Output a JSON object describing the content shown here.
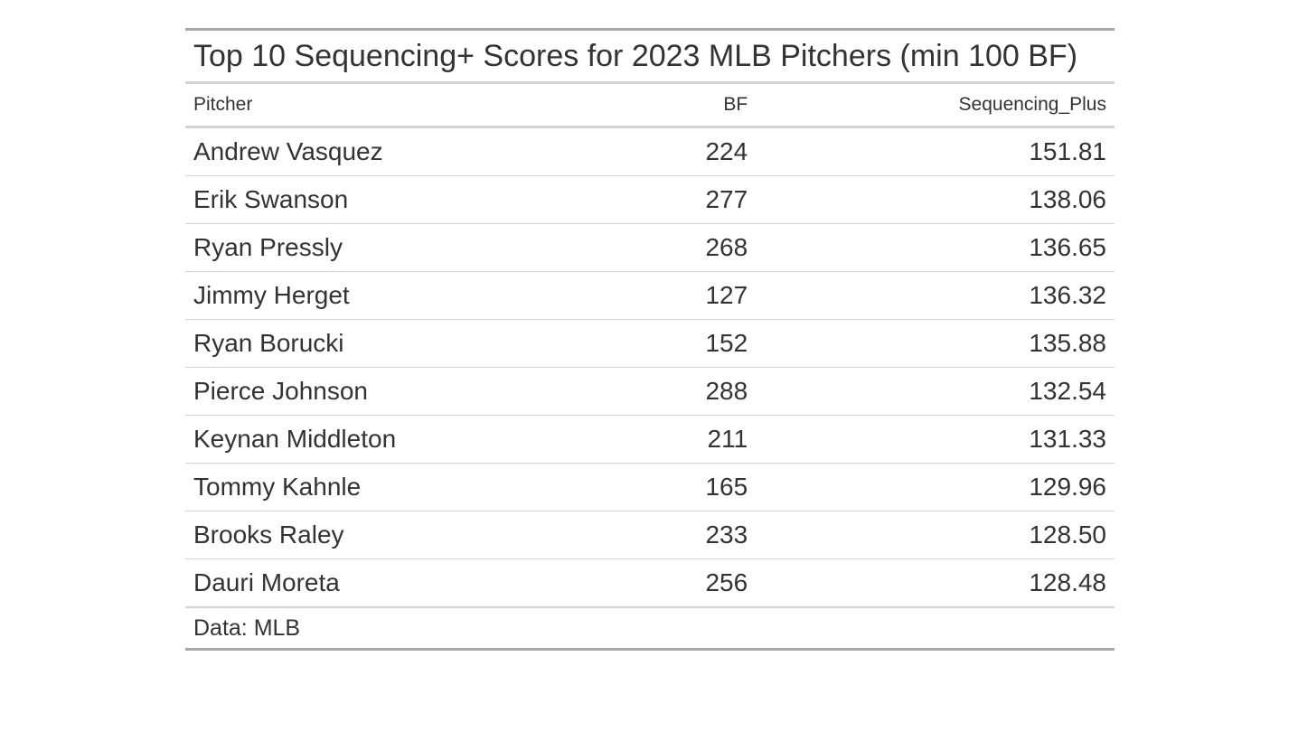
{
  "chart_data": {
    "type": "table",
    "title": "Top 10 Sequencing+ Scores for 2023 MLB Pitchers (min 100 BF)",
    "columns": [
      "Pitcher",
      "BF",
      "Sequencing_Plus"
    ],
    "rows": [
      [
        "Andrew Vasquez",
        "224",
        "151.81"
      ],
      [
        "Erik Swanson",
        "277",
        "138.06"
      ],
      [
        "Ryan Pressly",
        "268",
        "136.65"
      ],
      [
        "Jimmy Herget",
        "127",
        "136.32"
      ],
      [
        "Ryan Borucki",
        "152",
        "135.88"
      ],
      [
        "Pierce Johnson",
        "288",
        "132.54"
      ],
      [
        "Keynan Middleton",
        "211",
        "131.33"
      ],
      [
        "Tommy Kahnle",
        "165",
        "129.96"
      ],
      [
        "Brooks Raley",
        "233",
        "128.50"
      ],
      [
        "Dauri Moreta",
        "256",
        "128.48"
      ]
    ],
    "source_note": "Data: MLB"
  },
  "colors": {
    "text": "#333333",
    "outer_rule": "#a8a8a8",
    "inner_rule": "#d3d3d3"
  }
}
